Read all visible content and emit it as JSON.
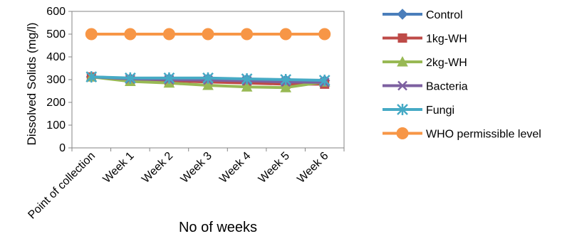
{
  "chart_data": {
    "type": "line",
    "title": "",
    "xlabel": "No of weeks",
    "ylabel": "Dissolved Solids (mg/l)",
    "ylim": [
      0,
      600
    ],
    "yticks": [
      0,
      100,
      200,
      300,
      400,
      500,
      600
    ],
    "categories": [
      "Point of collection",
      "Week 1",
      "Week 2",
      "Week 3",
      "Week 4",
      "Week 5",
      "Week 6"
    ],
    "grid": false,
    "legend": "right",
    "series": [
      {
        "name": "Control",
        "color": "#4a7ebb",
        "marker": "diamond",
        "values": [
          312,
          305,
          305,
          305,
          302,
          298,
          296
        ]
      },
      {
        "name": "1kg-WH",
        "color": "#be4b48",
        "marker": "square",
        "values": [
          312,
          300,
          295,
          290,
          285,
          280,
          280
        ]
      },
      {
        "name": "2kg-WH",
        "color": "#98b954",
        "marker": "triangle",
        "values": [
          312,
          292,
          285,
          275,
          268,
          265,
          290
        ]
      },
      {
        "name": "Bacteria",
        "color": "#7d60a0",
        "marker": "x",
        "values": [
          312,
          303,
          300,
          298,
          295,
          290,
          288
        ]
      },
      {
        "name": "Fungi",
        "color": "#46aac5",
        "marker": "star",
        "values": [
          312,
          307,
          307,
          307,
          303,
          300,
          297
        ]
      },
      {
        "name": "WHO permissible level",
        "color": "#f79646",
        "marker": "circle",
        "values": [
          500,
          500,
          500,
          500,
          500,
          500,
          500
        ]
      }
    ]
  }
}
